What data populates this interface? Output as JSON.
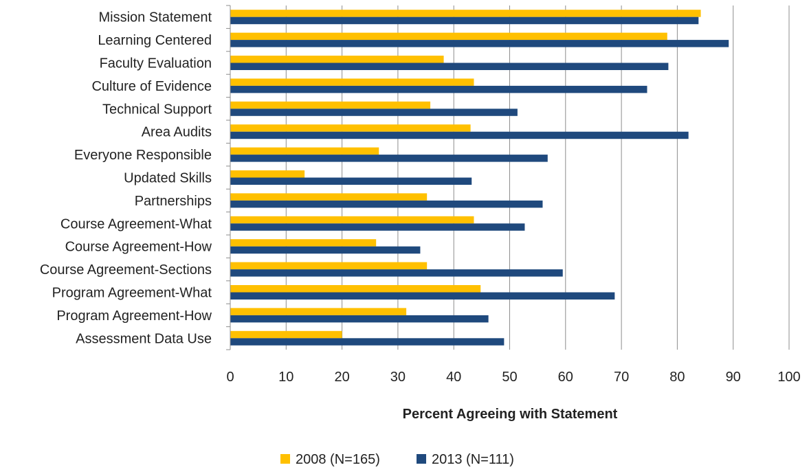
{
  "chart_data": {
    "type": "bar",
    "orientation": "horizontal",
    "title": "",
    "xlabel": "Percent Agreeing with Statement",
    "ylabel": "",
    "xlim": [
      0,
      100
    ],
    "xticks": [
      0,
      10,
      20,
      30,
      40,
      50,
      60,
      70,
      80,
      90,
      100
    ],
    "grid": "vertical",
    "legend_position": "bottom",
    "categories": [
      "Mission Statement",
      "Learning Centered",
      "Faculty Evaluation",
      "Culture of Evidence",
      "Technical Support",
      "Area Audits",
      "Everyone Responsible",
      "Updated Skills",
      "Partnerships",
      "Course Agreement-What",
      "Course Agreement-How",
      "Course Agreement-Sections",
      "Program Agreement-What",
      "Program Agreement-How",
      "Assessment Data Use"
    ],
    "series": [
      {
        "name": "2008 (N=165)",
        "color": "#FFC000",
        "values": [
          84.2,
          78.2,
          38.2,
          43.6,
          35.8,
          43.0,
          26.6,
          13.3,
          35.2,
          43.6,
          26.1,
          35.2,
          44.8,
          31.5,
          20.0
        ]
      },
      {
        "name": "2013 (N=111)",
        "color": "#1F497D",
        "values": [
          83.8,
          89.2,
          78.4,
          74.6,
          51.4,
          82.0,
          56.8,
          43.2,
          55.9,
          52.7,
          34.0,
          59.5,
          68.8,
          46.2,
          49.0
        ]
      }
    ]
  }
}
